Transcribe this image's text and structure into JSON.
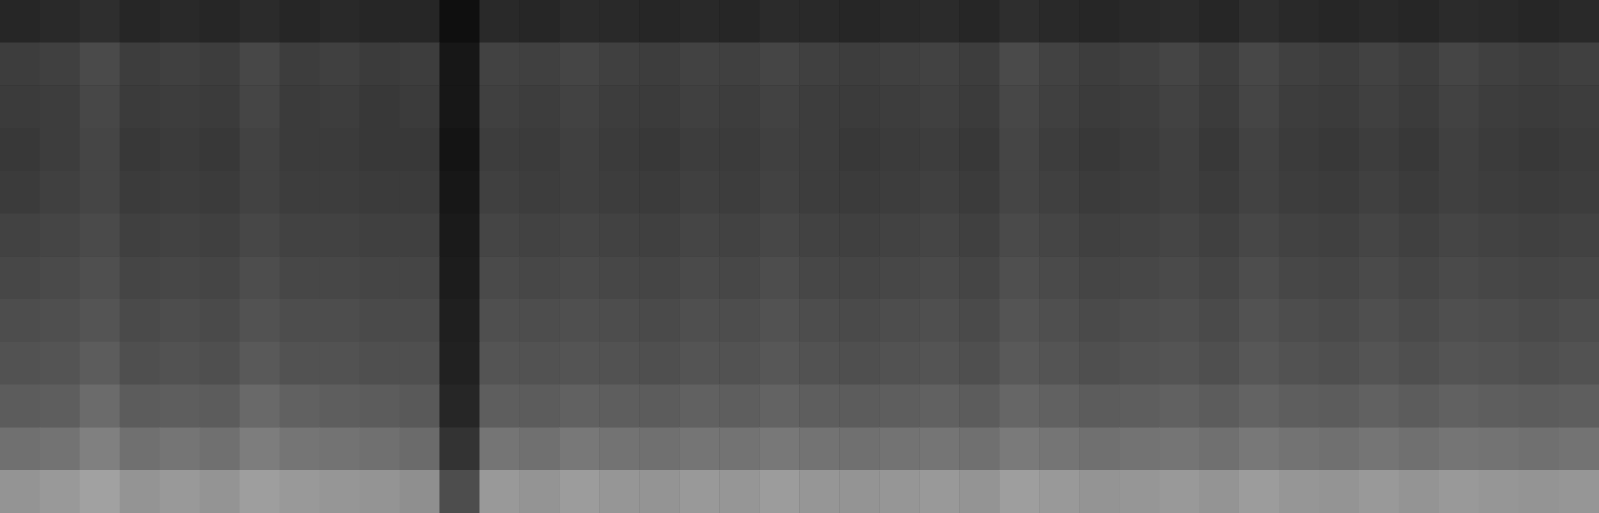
{
  "chart_data": {
    "type": "heatmap",
    "tick_labels": false,
    "zlim": [
      0,
      1
    ],
    "cells": [
      [
        0.15,
        0.16,
        0.18,
        0.15,
        0.16,
        0.15,
        0.17,
        0.15,
        0.16,
        0.15,
        0.15,
        0.06,
        0.16,
        0.15,
        0.17,
        0.16,
        0.15,
        0.16,
        0.15,
        0.17,
        0.16,
        0.15,
        0.16,
        0.17,
        0.15,
        0.18,
        0.16,
        0.15,
        0.16,
        0.17,
        0.15,
        0.18,
        0.16,
        0.15,
        0.16,
        0.15,
        0.17,
        0.16,
        0.15,
        0.16
      ],
      [
        0.24,
        0.25,
        0.29,
        0.24,
        0.25,
        0.24,
        0.28,
        0.24,
        0.25,
        0.23,
        0.24,
        0.09,
        0.26,
        0.25,
        0.27,
        0.25,
        0.24,
        0.26,
        0.25,
        0.27,
        0.25,
        0.24,
        0.25,
        0.26,
        0.24,
        0.29,
        0.26,
        0.24,
        0.25,
        0.27,
        0.24,
        0.28,
        0.25,
        0.24,
        0.26,
        0.24,
        0.27,
        0.25,
        0.24,
        0.25
      ],
      [
        0.23,
        0.24,
        0.28,
        0.23,
        0.24,
        0.23,
        0.27,
        0.23,
        0.24,
        0.22,
        0.23,
        0.09,
        0.25,
        0.24,
        0.26,
        0.24,
        0.23,
        0.25,
        0.24,
        0.26,
        0.24,
        0.23,
        0.24,
        0.25,
        0.23,
        0.28,
        0.25,
        0.23,
        0.24,
        0.26,
        0.23,
        0.27,
        0.24,
        0.23,
        0.25,
        0.23,
        0.26,
        0.24,
        0.23,
        0.24
      ],
      [
        0.22,
        0.24,
        0.27,
        0.22,
        0.23,
        0.22,
        0.26,
        0.23,
        0.23,
        0.22,
        0.22,
        0.08,
        0.24,
        0.23,
        0.25,
        0.23,
        0.22,
        0.24,
        0.23,
        0.25,
        0.24,
        0.22,
        0.23,
        0.24,
        0.22,
        0.27,
        0.24,
        0.22,
        0.23,
        0.25,
        0.22,
        0.26,
        0.23,
        0.22,
        0.24,
        0.22,
        0.25,
        0.23,
        0.22,
        0.23
      ],
      [
        0.23,
        0.25,
        0.27,
        0.23,
        0.24,
        0.23,
        0.26,
        0.24,
        0.24,
        0.23,
        0.23,
        0.09,
        0.25,
        0.24,
        0.25,
        0.24,
        0.23,
        0.25,
        0.24,
        0.26,
        0.24,
        0.23,
        0.24,
        0.25,
        0.23,
        0.27,
        0.25,
        0.23,
        0.24,
        0.25,
        0.23,
        0.26,
        0.24,
        0.23,
        0.25,
        0.23,
        0.25,
        0.24,
        0.23,
        0.24
      ],
      [
        0.26,
        0.27,
        0.29,
        0.25,
        0.26,
        0.25,
        0.28,
        0.26,
        0.26,
        0.25,
        0.25,
        0.1,
        0.27,
        0.26,
        0.27,
        0.26,
        0.25,
        0.27,
        0.26,
        0.28,
        0.26,
        0.25,
        0.26,
        0.27,
        0.25,
        0.29,
        0.27,
        0.25,
        0.26,
        0.27,
        0.25,
        0.28,
        0.26,
        0.25,
        0.27,
        0.25,
        0.27,
        0.26,
        0.25,
        0.26
      ],
      [
        0.28,
        0.29,
        0.31,
        0.27,
        0.28,
        0.27,
        0.3,
        0.28,
        0.28,
        0.27,
        0.27,
        0.11,
        0.29,
        0.28,
        0.29,
        0.28,
        0.27,
        0.29,
        0.28,
        0.3,
        0.28,
        0.27,
        0.28,
        0.29,
        0.27,
        0.31,
        0.29,
        0.27,
        0.28,
        0.29,
        0.27,
        0.3,
        0.28,
        0.27,
        0.29,
        0.27,
        0.29,
        0.28,
        0.27,
        0.28
      ],
      [
        0.3,
        0.31,
        0.33,
        0.29,
        0.3,
        0.29,
        0.32,
        0.3,
        0.3,
        0.29,
        0.29,
        0.12,
        0.31,
        0.3,
        0.31,
        0.3,
        0.29,
        0.31,
        0.3,
        0.32,
        0.3,
        0.29,
        0.3,
        0.31,
        0.29,
        0.33,
        0.31,
        0.29,
        0.3,
        0.31,
        0.29,
        0.32,
        0.3,
        0.29,
        0.31,
        0.29,
        0.31,
        0.3,
        0.29,
        0.3
      ],
      [
        0.32,
        0.33,
        0.36,
        0.31,
        0.32,
        0.31,
        0.35,
        0.32,
        0.32,
        0.31,
        0.31,
        0.13,
        0.33,
        0.32,
        0.33,
        0.32,
        0.31,
        0.33,
        0.32,
        0.34,
        0.32,
        0.31,
        0.32,
        0.33,
        0.31,
        0.35,
        0.33,
        0.31,
        0.32,
        0.33,
        0.31,
        0.34,
        0.32,
        0.31,
        0.33,
        0.31,
        0.33,
        0.32,
        0.31,
        0.32
      ],
      [
        0.36,
        0.37,
        0.42,
        0.36,
        0.37,
        0.36,
        0.41,
        0.38,
        0.37,
        0.36,
        0.35,
        0.15,
        0.37,
        0.36,
        0.38,
        0.37,
        0.36,
        0.38,
        0.37,
        0.39,
        0.37,
        0.36,
        0.37,
        0.38,
        0.36,
        0.4,
        0.38,
        0.36,
        0.37,
        0.38,
        0.36,
        0.39,
        0.37,
        0.36,
        0.38,
        0.36,
        0.38,
        0.37,
        0.36,
        0.37
      ],
      [
        0.44,
        0.45,
        0.5,
        0.44,
        0.46,
        0.44,
        0.49,
        0.46,
        0.45,
        0.44,
        0.42,
        0.2,
        0.46,
        0.44,
        0.47,
        0.45,
        0.44,
        0.46,
        0.45,
        0.47,
        0.45,
        0.44,
        0.45,
        0.46,
        0.44,
        0.48,
        0.46,
        0.44,
        0.45,
        0.46,
        0.44,
        0.47,
        0.45,
        0.44,
        0.46,
        0.44,
        0.46,
        0.45,
        0.44,
        0.45
      ],
      [
        0.58,
        0.6,
        0.63,
        0.58,
        0.6,
        0.58,
        0.62,
        0.6,
        0.59,
        0.58,
        0.56,
        0.3,
        0.6,
        0.58,
        0.61,
        0.59,
        0.58,
        0.6,
        0.59,
        0.61,
        0.59,
        0.58,
        0.59,
        0.6,
        0.58,
        0.62,
        0.6,
        0.58,
        0.59,
        0.6,
        0.58,
        0.61,
        0.59,
        0.58,
        0.6,
        0.58,
        0.6,
        0.59,
        0.58,
        0.59
      ]
    ]
  }
}
